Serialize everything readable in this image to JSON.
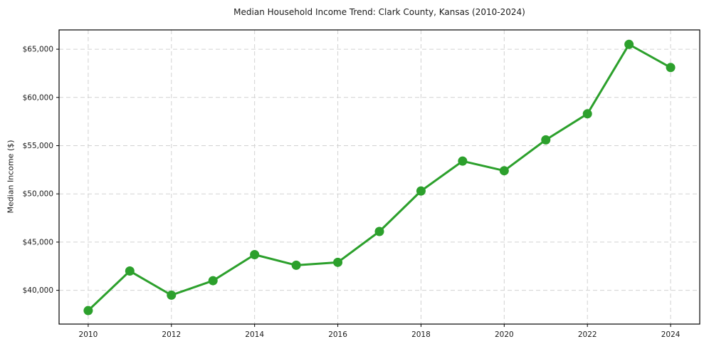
{
  "chart_data": {
    "type": "line",
    "title": "Median Household Income Trend: Clark County, Kansas (2010-2024)",
    "xlabel": "",
    "ylabel": "Median Income ($)",
    "x": [
      2010,
      2011,
      2012,
      2013,
      2014,
      2015,
      2016,
      2017,
      2018,
      2019,
      2020,
      2021,
      2022,
      2023,
      2024
    ],
    "values": [
      37900,
      42000,
      39500,
      41000,
      43700,
      42600,
      42900,
      46100,
      50300,
      53400,
      52400,
      55600,
      58300,
      65500,
      63100
    ],
    "series_name": "Median Household Income",
    "x_ticks": [
      2010,
      2012,
      2014,
      2016,
      2018,
      2020,
      2022,
      2024
    ],
    "x_tick_labels": [
      "2010",
      "2012",
      "2014",
      "2016",
      "2018",
      "2020",
      "2022",
      "2024"
    ],
    "y_ticks": [
      40000,
      45000,
      50000,
      55000,
      60000,
      65000
    ],
    "y_tick_labels": [
      "$40,000",
      "$45,000",
      "$50,000",
      "$55,000",
      "$60,000",
      "$65,000"
    ],
    "xlim": [
      2009.3,
      2024.7
    ],
    "ylim": [
      36500,
      67000
    ],
    "grid": true,
    "grid_style": "dashed",
    "legend_position": "none",
    "line_color": "#2ca02c",
    "marker": "circle",
    "marker_color": "#2ca02c",
    "grid_color": "#d2d2d2",
    "spine_color": "#000000",
    "text_color": "#1a1a1a",
    "background_color": "#ffffff"
  }
}
